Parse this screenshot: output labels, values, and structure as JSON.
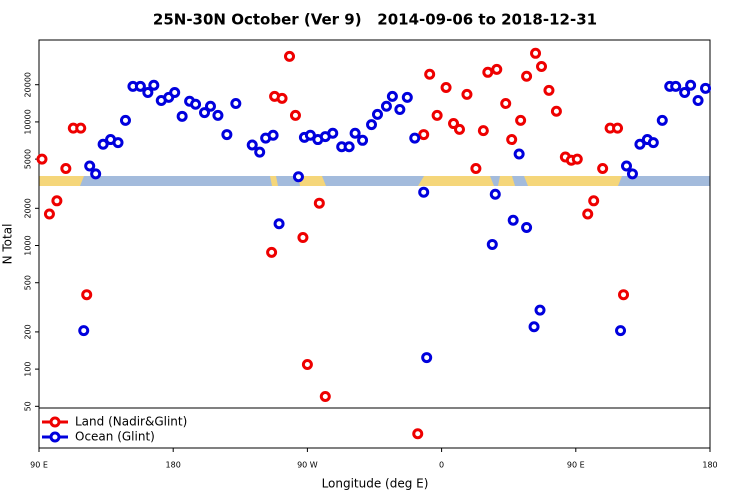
{
  "chart_data": {
    "type": "scatter",
    "title": "25N-30N October (Ver 9)   2014-09-06 to 2018-12-31",
    "x_label": "Longitude (deg E)",
    "y_label": "N Total",
    "log_y": true,
    "legend": "lower left",
    "xlim": [
      90,
      540
    ],
    "ylim": [
      23,
      46000
    ],
    "xticks": [
      {
        "value": 90,
        "label": "90 E"
      },
      180,
      {
        "value": 270,
        "label": "90 W"
      },
      {
        "value": 360,
        "label": "0"
      },
      {
        "value": 450,
        "label": "90 E"
      },
      {
        "value": 540,
        "label": "180"
      }
    ],
    "yticks": [
      50,
      100,
      200,
      500,
      1000,
      2000,
      5000,
      10000,
      20000
    ],
    "series": [
      {
        "name": "Land (Nadir&Glint)",
        "color": "#ee0000",
        "x": [
          92,
          97,
          102,
          108,
          113,
          118,
          122,
          246,
          248,
          253,
          258,
          262,
          267,
          270,
          278,
          282,
          344,
          348,
          352,
          357,
          363,
          368,
          372,
          377,
          383,
          388,
          391,
          397,
          403,
          407,
          413,
          417,
          423,
          427,
          432,
          437,
          443,
          447,
          451,
          458,
          462,
          468,
          473,
          478,
          482
        ],
        "values": [
          5000,
          1800,
          2300,
          4200,
          8900,
          8900,
          400,
          880,
          16100,
          15500,
          33900,
          11300,
          1160,
          109,
          2200,
          60,
          30,
          7900,
          24300,
          11300,
          19000,
          9700,
          8700,
          16700,
          4200,
          8500,
          25200,
          26600,
          14100,
          7200,
          10300,
          23400,
          35900,
          28100,
          18000,
          12200,
          5200,
          4900,
          5000,
          1800,
          2300,
          4200,
          8900,
          8900,
          400
        ]
      },
      {
        "name": "Ocean (Glint)",
        "color": "#0000dd",
        "x": [
          120,
          124,
          128,
          133,
          138,
          143,
          148,
          153,
          158,
          163,
          167,
          172,
          177,
          181,
          186,
          191,
          195,
          201,
          205,
          210,
          216,
          222,
          233,
          238,
          242,
          247,
          251,
          264,
          268,
          272,
          277,
          282,
          287,
          293,
          298,
          302,
          307,
          313,
          317,
          323,
          327,
          332,
          337,
          342,
          348,
          350,
          394,
          396,
          408,
          412,
          417,
          422,
          426,
          480,
          484,
          488,
          493,
          498,
          502,
          508,
          513,
          517,
          523,
          527,
          532,
          537
        ],
        "values": [
          205,
          4400,
          3800,
          6600,
          7200,
          6800,
          10300,
          19400,
          19400,
          17300,
          19800,
          14900,
          15800,
          17300,
          11100,
          14700,
          13900,
          11900,
          13400,
          11300,
          7900,
          14100,
          6500,
          5700,
          7400,
          7800,
          1500,
          3600,
          7500,
          7800,
          7200,
          7600,
          8100,
          6300,
          6300,
          8100,
          7100,
          9500,
          11500,
          13400,
          16100,
          12600,
          15800,
          7400,
          2700,
          124,
          1020,
          2600,
          1600,
          5500,
          1400,
          220,
          300,
          205,
          4400,
          3800,
          6600,
          7200,
          6800,
          10300,
          19400,
          19400,
          17300,
          19800,
          14900,
          18700
        ]
      }
    ]
  }
}
